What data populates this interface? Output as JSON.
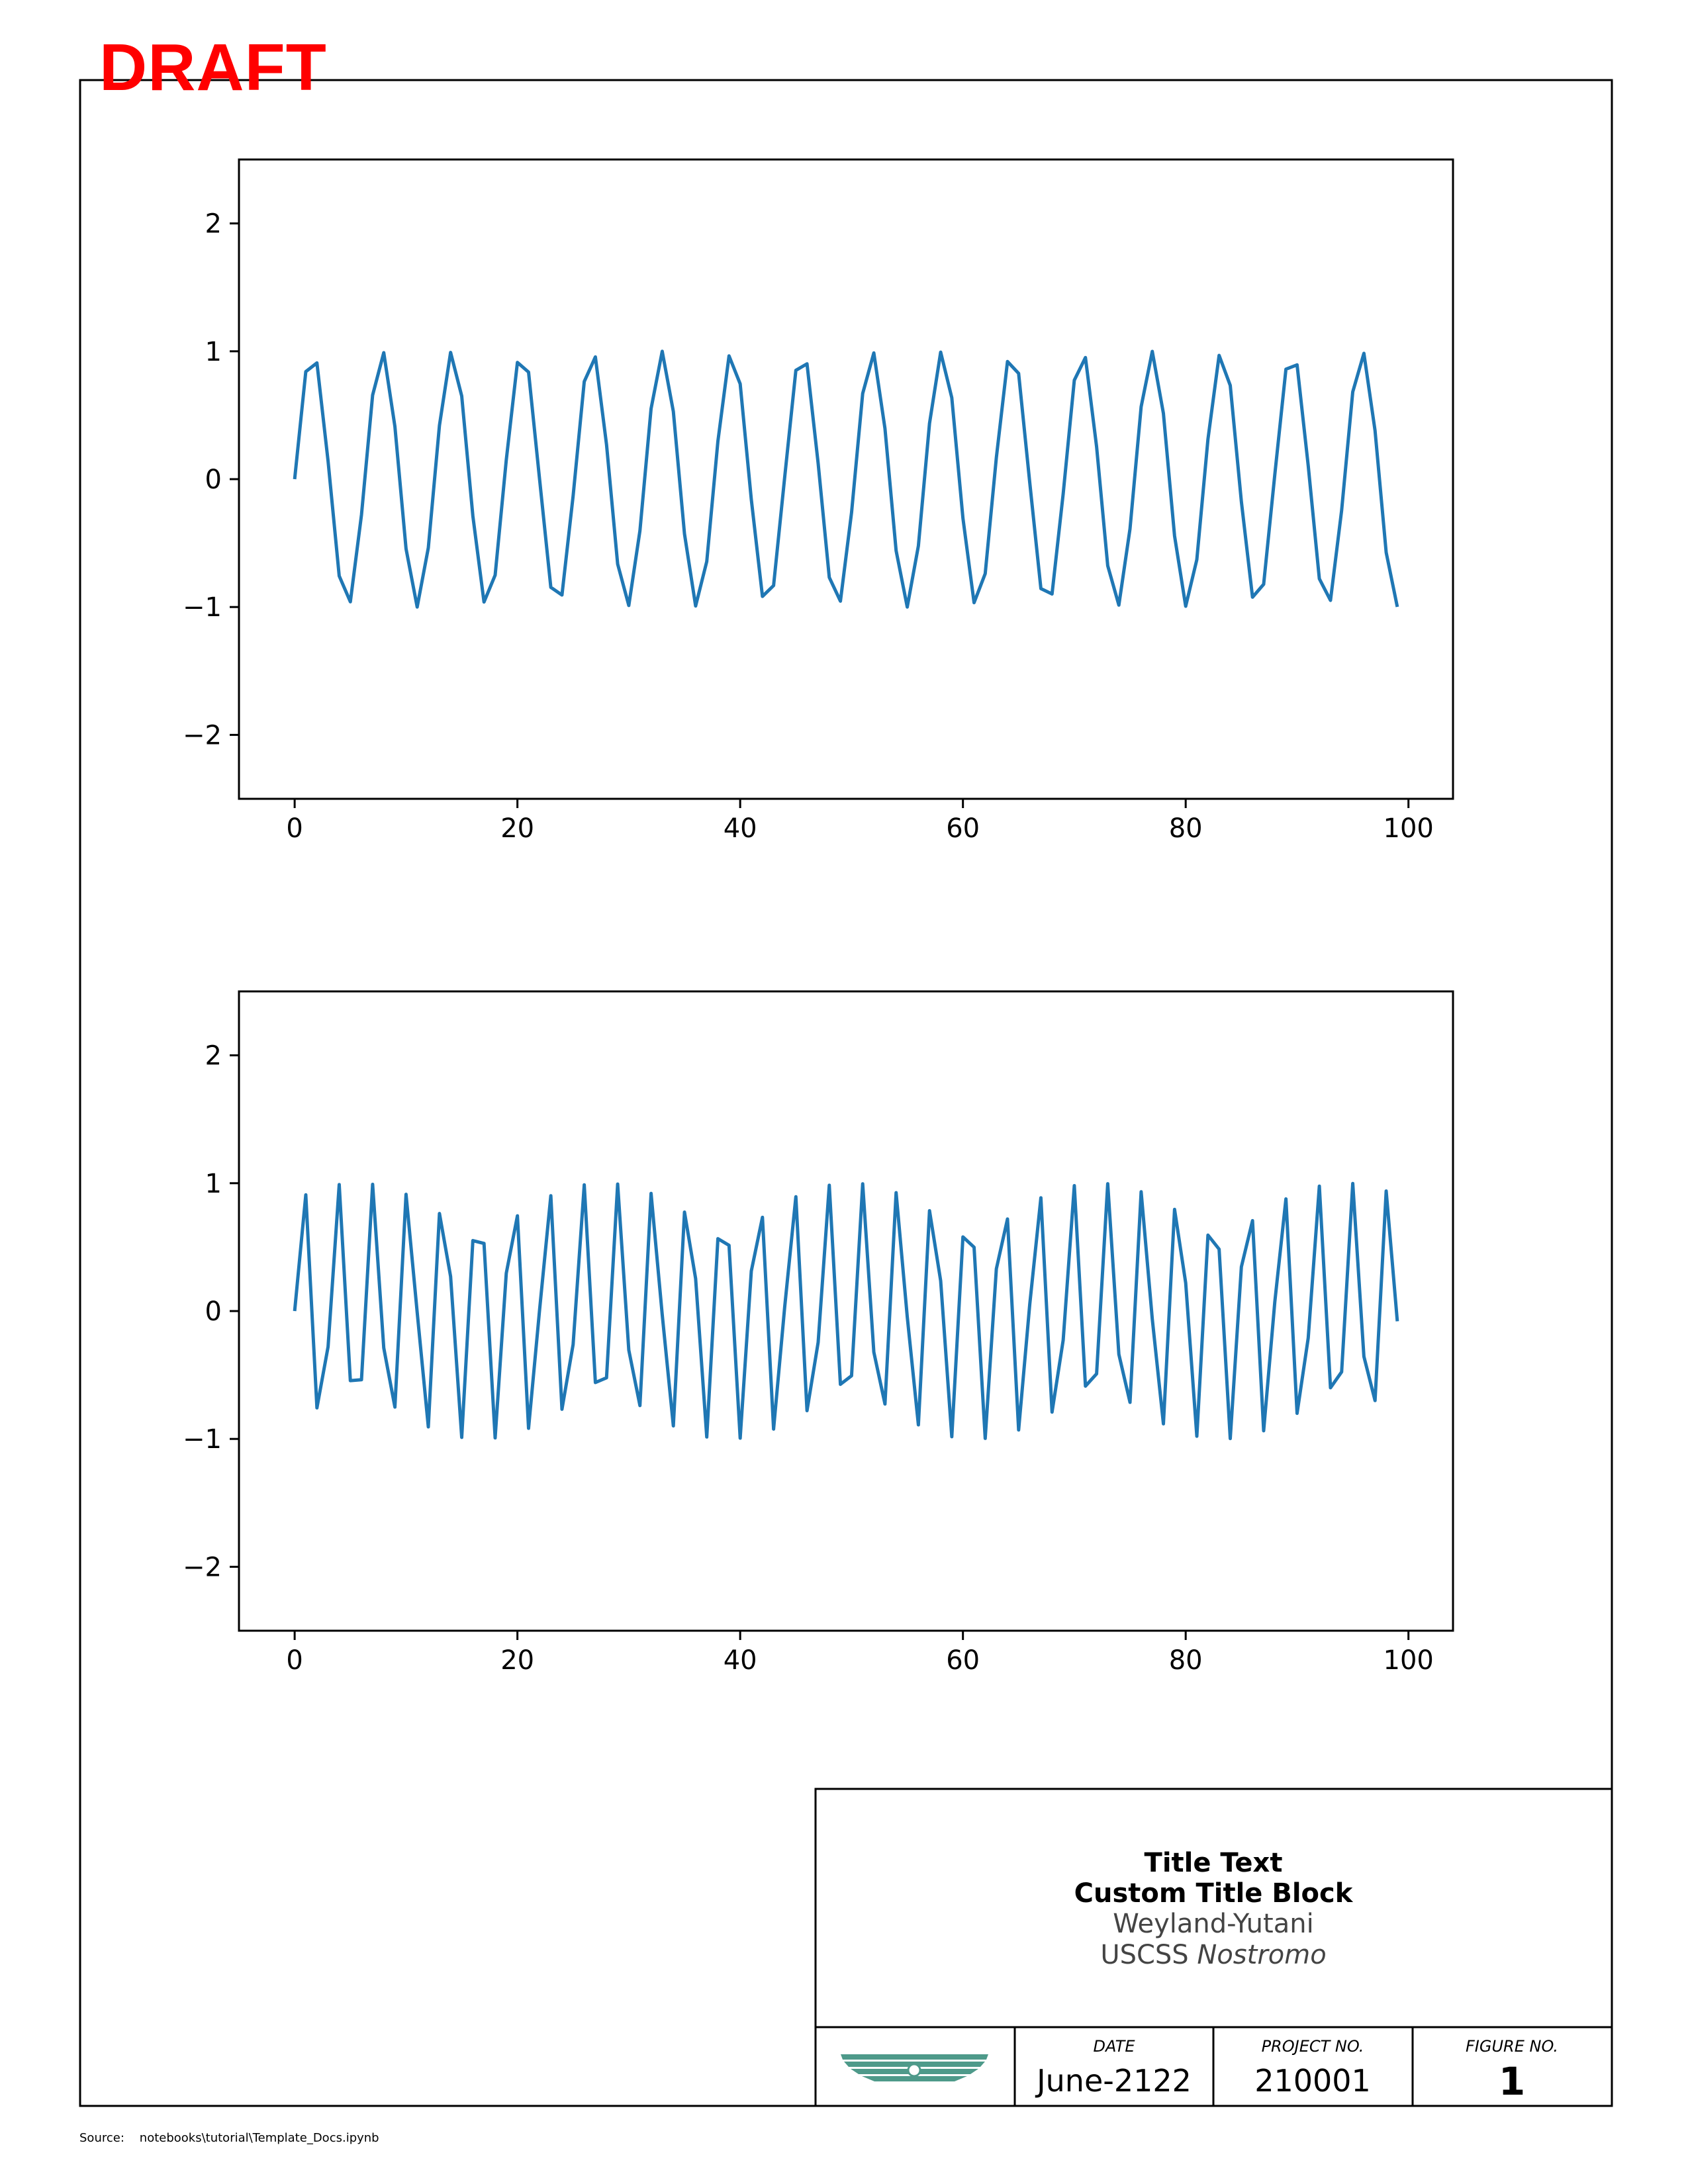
{
  "watermark": "DRAFT",
  "chart_data": [
    {
      "type": "line",
      "title": "",
      "xlabel": "",
      "ylabel": "",
      "xlim": [
        -5,
        104
      ],
      "ylim": [
        -2.5,
        2.5
      ],
      "xticks": [
        0,
        20,
        40,
        60,
        80,
        100
      ],
      "yticks": [
        2,
        1,
        0,
        -1,
        -2
      ],
      "xtick_labels": [
        "0",
        "20",
        "40",
        "60",
        "80",
        "100"
      ],
      "ytick_labels": [
        "2",
        "1",
        "0",
        "−1",
        "−2"
      ],
      "grid": false,
      "color": "#1f77b4",
      "x": [
        0,
        1,
        2,
        3,
        4,
        5,
        6,
        7,
        8,
        9,
        10,
        11,
        12,
        13,
        14,
        15,
        16,
        17,
        18,
        19,
        20,
        21,
        22,
        23,
        24,
        25,
        26,
        27,
        28,
        29,
        30,
        31,
        32,
        33,
        34,
        35,
        36,
        37,
        38,
        39,
        40,
        41,
        42,
        43,
        44,
        45,
        46,
        47,
        48,
        49,
        50,
        51,
        52,
        53,
        54,
        55,
        56,
        57,
        58,
        59,
        60,
        61,
        62,
        63,
        64,
        65,
        66,
        67,
        68,
        69,
        70,
        71,
        72,
        73,
        74,
        75,
        76,
        77,
        78,
        79,
        80,
        81,
        82,
        83,
        84,
        85,
        86,
        87,
        88,
        89,
        90,
        91,
        92,
        93,
        94,
        95,
        96,
        97,
        98,
        99
      ],
      "y": [
        0,
        0.841,
        0.909,
        0.141,
        -0.757,
        -0.959,
        -0.279,
        0.657,
        0.989,
        0.412,
        -0.544,
        -1.0,
        -0.537,
        0.42,
        0.991,
        0.65,
        -0.288,
        -0.961,
        -0.751,
        0.15,
        0.913,
        0.837,
        -0.009,
        -0.846,
        -0.906,
        -0.132,
        0.763,
        0.956,
        0.271,
        -0.664,
        -0.988,
        -0.404,
        0.551,
        1.0,
        0.529,
        -0.428,
        -0.992,
        -0.644,
        0.296,
        0.964,
        0.745,
        -0.159,
        -0.917,
        -0.832,
        0.018,
        0.851,
        0.902,
        0.124,
        -0.768,
        -0.954,
        -0.262,
        0.67,
        0.987,
        0.396,
        -0.559,
        -1.0,
        -0.522,
        0.436,
        0.993,
        0.637,
        -0.305,
        -0.966,
        -0.739,
        0.168,
        0.92,
        0.827,
        -0.027,
        -0.856,
        -0.898,
        -0.115,
        0.774,
        0.951,
        0.254,
        -0.677,
        -0.985,
        -0.388,
        0.566,
        0.999,
        0.514,
        -0.444,
        -0.994,
        -0.629,
        0.313,
        0.968,
        0.733,
        -0.176,
        -0.923,
        -0.822,
        0.035,
        0.86,
        0.894,
        0.106,
        -0.779,
        -0.948,
        -0.245,
        0.683,
        0.984,
        0.38,
        -0.573,
        -0.999
      ]
    },
    {
      "type": "line",
      "title": "",
      "xlabel": "",
      "ylabel": "",
      "xlim": [
        -5,
        104
      ],
      "ylim": [
        -2.5,
        2.5
      ],
      "xticks": [
        0,
        20,
        40,
        60,
        80,
        100
      ],
      "yticks": [
        2,
        1,
        0,
        -1,
        -2
      ],
      "xtick_labels": [
        "0",
        "20",
        "40",
        "60",
        "80",
        "100"
      ],
      "ytick_labels": [
        "2",
        "1",
        "0",
        "−1",
        "−2"
      ],
      "grid": false,
      "color": "#1f77b4",
      "x": [
        0,
        1,
        2,
        3,
        4,
        5,
        6,
        7,
        8,
        9,
        10,
        11,
        12,
        13,
        14,
        15,
        16,
        17,
        18,
        19,
        20,
        21,
        22,
        23,
        24,
        25,
        26,
        27,
        28,
        29,
        30,
        31,
        32,
        33,
        34,
        35,
        36,
        37,
        38,
        39,
        40,
        41,
        42,
        43,
        44,
        45,
        46,
        47,
        48,
        49,
        50,
        51,
        52,
        53,
        54,
        55,
        56,
        57,
        58,
        59,
        60,
        61,
        62,
        63,
        64,
        65,
        66,
        67,
        68,
        69,
        70,
        71,
        72,
        73,
        74,
        75,
        76,
        77,
        78,
        79,
        80,
        81,
        82,
        83,
        84,
        85,
        86,
        87,
        88,
        89,
        90,
        91,
        92,
        93,
        94,
        95,
        96,
        97,
        98,
        99
      ],
      "y": [
        0,
        0.909,
        -0.757,
        -0.279,
        0.989,
        -0.544,
        -0.537,
        0.991,
        -0.288,
        -0.751,
        0.913,
        -0.009,
        -0.906,
        0.763,
        0.271,
        -0.988,
        0.551,
        0.529,
        -0.992,
        0.296,
        0.745,
        -0.917,
        0.018,
        0.902,
        -0.768,
        -0.262,
        0.987,
        -0.559,
        -0.522,
        0.993,
        -0.305,
        -0.739,
        0.92,
        -0.027,
        -0.898,
        0.774,
        0.254,
        -0.985,
        0.566,
        0.514,
        -0.994,
        0.313,
        0.733,
        -0.923,
        0.035,
        0.894,
        -0.779,
        -0.245,
        0.984,
        -0.573,
        -0.506,
        0.995,
        -0.321,
        -0.727,
        0.926,
        -0.044,
        -0.89,
        0.785,
        0.237,
        -0.983,
        0.58,
        0.499,
        -0.996,
        0.33,
        0.72,
        -0.93,
        0.053,
        0.886,
        -0.79,
        -0.228,
        0.981,
        -0.587,
        -0.491,
        0.996,
        -0.338,
        -0.714,
        0.933,
        -0.062,
        -0.882,
        0.795,
        0.22,
        -0.979,
        0.594,
        0.484,
        -0.997,
        0.346,
        0.707,
        -0.936,
        0.071,
        0.877,
        -0.8,
        -0.211,
        0.977,
        -0.6,
        -0.476,
        0.998,
        -0.355,
        -0.7,
        0.939,
        -0.08
      ]
    }
  ],
  "title_block": {
    "title_line1": "Title Text",
    "title_line2": "Custom Title Block",
    "company": "Weyland-Yutani",
    "vessel_prefix": "USCSS ",
    "vessel_name": "Nostromo",
    "logo_icon": "winged-emblem-icon",
    "logo_color": "#4e9a8a",
    "date_label": "DATE",
    "date_value": "June-2122",
    "project_label": "PROJECT NO.",
    "project_value": "210001",
    "figure_label": "FIGURE NO.",
    "figure_value": "1"
  },
  "source": {
    "label": "Source:",
    "path": "notebooks\\tutorial\\Template_Docs.ipynb"
  }
}
